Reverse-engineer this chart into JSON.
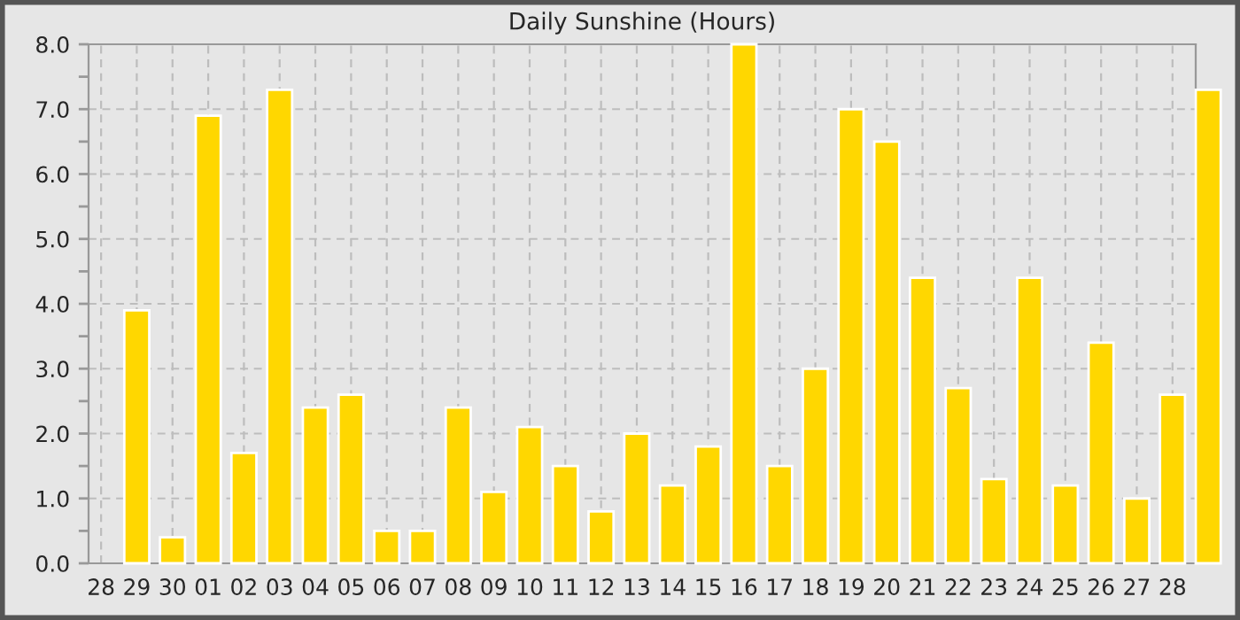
{
  "chart_data": {
    "type": "bar",
    "title": "Daily Sunshine (Hours)",
    "categories": [
      "28",
      "29",
      "30",
      "01",
      "02",
      "03",
      "04",
      "05",
      "06",
      "07",
      "08",
      "09",
      "10",
      "11",
      "12",
      "13",
      "14",
      "15",
      "16",
      "17",
      "18",
      "19",
      "20",
      "21",
      "22",
      "23",
      "24",
      "25",
      "26",
      "27",
      "28",
      null
    ],
    "values": [
      null,
      3.9,
      0.4,
      6.9,
      1.7,
      7.3,
      2.4,
      2.6,
      0.5,
      0.5,
      2.4,
      1.1,
      2.1,
      1.5,
      0.8,
      2.0,
      1.2,
      1.8,
      8.0,
      1.5,
      3.0,
      7.0,
      6.5,
      4.4,
      2.7,
      1.3,
      4.4,
      1.2,
      3.4,
      1.0,
      2.6,
      7.3
    ],
    "color": "#ffd700",
    "ylim": [
      0,
      8
    ],
    "yticks": [
      {
        "value": 0,
        "label": "0.0"
      },
      {
        "value": 0.5,
        "label": null
      },
      {
        "value": 1,
        "label": "1.0"
      },
      {
        "value": 1.5,
        "label": null
      },
      {
        "value": 2,
        "label": "2.0"
      },
      {
        "value": 2.5,
        "label": null
      },
      {
        "value": 3,
        "label": "3.0"
      },
      {
        "value": 3.5,
        "label": null
      },
      {
        "value": 4,
        "label": "4.0"
      },
      {
        "value": 4.5,
        "label": null
      },
      {
        "value": 5,
        "label": "5.0"
      },
      {
        "value": 5.5,
        "label": null
      },
      {
        "value": 6,
        "label": "6.0"
      },
      {
        "value": 6.5,
        "label": null
      },
      {
        "value": 7,
        "label": "7.0"
      },
      {
        "value": 7.5,
        "label": null
      },
      {
        "value": 8,
        "label": "8.0"
      }
    ],
    "grid": true
  }
}
